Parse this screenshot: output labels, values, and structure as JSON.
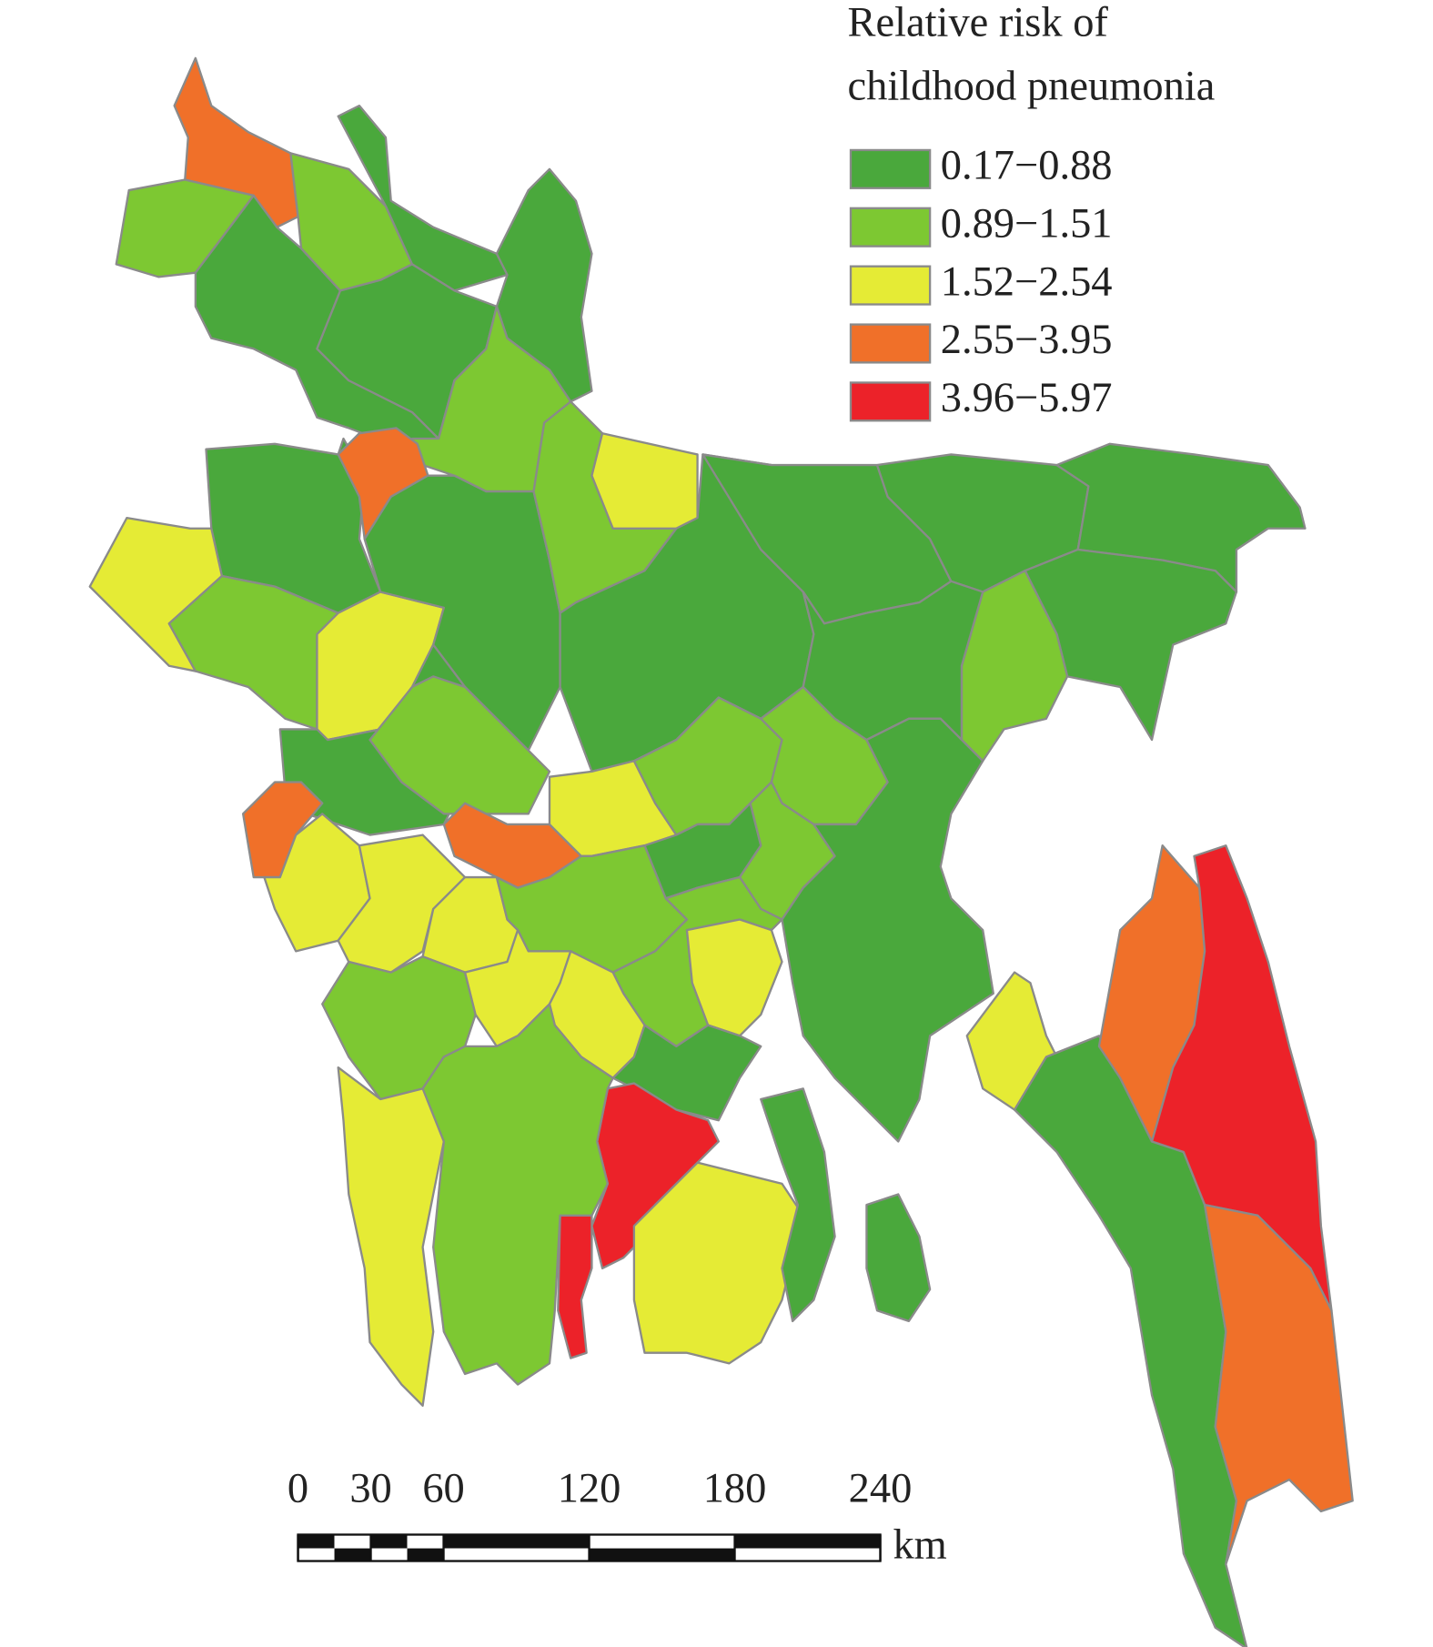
{
  "legend": {
    "title": [
      "Relative risk of",
      "childhood pneumonia"
    ],
    "items": [
      {
        "label": "0.17−0.88",
        "color": "#4aa83c"
      },
      {
        "label": "0.89−1.51",
        "color": "#7dc832"
      },
      {
        "label": "1.52−2.54",
        "color": "#e5eb35"
      },
      {
        "label": "2.55−3.95",
        "color": "#f07029"
      },
      {
        "label": "3.96−5.97",
        "color": "#ec2229"
      }
    ]
  },
  "scale_bar": {
    "ticks": [
      0,
      30,
      60,
      120,
      180,
      240
    ],
    "unit": "km"
  }
}
